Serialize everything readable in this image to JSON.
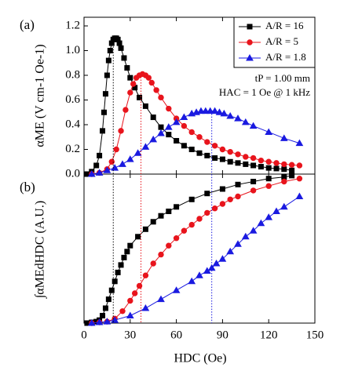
{
  "chart_data": [
    {
      "type": "line",
      "panel_label": "(a)",
      "y_label": "αME (V cm-1 Oe-1)",
      "annotations": [
        "tP = 1.00 mm",
        "HAC = 1 Oe @ 1 kHz"
      ],
      "xlim": [
        0,
        150
      ],
      "xticks": [
        0,
        30,
        60,
        90,
        120,
        150
      ],
      "ylim": [
        0,
        1.27
      ],
      "yticks": [
        {
          "value": 0,
          "label": "0.0"
        },
        0.2,
        0.4,
        0.6,
        0.8,
        {
          "value": 1,
          "label": "1.0"
        },
        1.2
      ],
      "legend": "upper right",
      "reference_lines": [
        {
          "x": 19,
          "color": "#000000"
        },
        {
          "x": 37,
          "color": "#e8141c"
        },
        {
          "x": 83,
          "color": "#1a1ae0"
        }
      ],
      "series": [
        {
          "name": "A/R = 16",
          "color": "#000000",
          "marker": "square",
          "x": [
            2,
            5,
            8,
            10,
            12,
            13,
            14,
            15,
            16,
            17,
            18,
            19,
            20,
            21,
            22,
            23,
            24,
            26,
            28,
            30,
            33,
            36,
            40,
            45,
            50,
            55,
            60,
            65,
            70,
            75,
            80,
            85,
            90,
            95,
            100,
            105,
            110,
            115,
            120,
            125,
            130,
            135
          ],
          "values": [
            0,
            0.02,
            0.07,
            0.15,
            0.35,
            0.5,
            0.65,
            0.8,
            0.92,
            1.0,
            1.06,
            1.09,
            1.1,
            1.1,
            1.09,
            1.06,
            1.02,
            0.94,
            0.86,
            0.78,
            0.7,
            0.62,
            0.55,
            0.46,
            0.38,
            0.32,
            0.27,
            0.23,
            0.2,
            0.17,
            0.15,
            0.13,
            0.12,
            0.1,
            0.09,
            0.08,
            0.07,
            0.06,
            0.05,
            0.045,
            0.04,
            0.03
          ]
        },
        {
          "name": "A/R = 5",
          "color": "#e8141c",
          "marker": "circle",
          "x": [
            5,
            10,
            15,
            18,
            21,
            24,
            27,
            30,
            32,
            34,
            36,
            38,
            40,
            42,
            44,
            47,
            50,
            55,
            60,
            65,
            70,
            75,
            80,
            85,
            90,
            95,
            100,
            105,
            110,
            115,
            120,
            125,
            130,
            135,
            140
          ],
          "values": [
            0,
            0.01,
            0.04,
            0.1,
            0.2,
            0.35,
            0.52,
            0.66,
            0.73,
            0.78,
            0.8,
            0.81,
            0.8,
            0.78,
            0.74,
            0.68,
            0.62,
            0.53,
            0.45,
            0.39,
            0.34,
            0.3,
            0.26,
            0.23,
            0.2,
            0.18,
            0.16,
            0.14,
            0.13,
            0.11,
            0.1,
            0.09,
            0.08,
            0.075,
            0.07
          ]
        },
        {
          "name": "A/R = 1.8",
          "color": "#1a1ae0",
          "marker": "triangle",
          "x": [
            5,
            10,
            15,
            20,
            25,
            30,
            35,
            40,
            45,
            50,
            55,
            60,
            65,
            70,
            73,
            76,
            79,
            82,
            85,
            88,
            91,
            95,
            100,
            105,
            110,
            120,
            130,
            140
          ],
          "values": [
            0,
            0.01,
            0.03,
            0.05,
            0.08,
            0.12,
            0.17,
            0.22,
            0.28,
            0.33,
            0.38,
            0.42,
            0.46,
            0.49,
            0.5,
            0.51,
            0.51,
            0.51,
            0.51,
            0.5,
            0.49,
            0.47,
            0.45,
            0.42,
            0.39,
            0.34,
            0.29,
            0.25
          ]
        }
      ]
    },
    {
      "type": "line",
      "panel_label": "(b)",
      "y_label": "∫αMEdHDC (A.U.)",
      "x_label": "HDC (Oe)",
      "xlim": [
        0,
        150
      ],
      "xticks": [
        0,
        30,
        60,
        90,
        120,
        150
      ],
      "ylim": [
        0,
        1
      ],
      "series": [
        {
          "color": "#000000",
          "marker": "square",
          "x": [
            2,
            5,
            8,
            10,
            12,
            14,
            16,
            18,
            20,
            22,
            24,
            26,
            28,
            30,
            35,
            40,
            45,
            50,
            55,
            60,
            70,
            80,
            90,
            100,
            110,
            120,
            130,
            135
          ],
          "values": [
            0,
            0.005,
            0.01,
            0.02,
            0.05,
            0.1,
            0.16,
            0.22,
            0.28,
            0.34,
            0.39,
            0.44,
            0.48,
            0.52,
            0.58,
            0.63,
            0.68,
            0.72,
            0.75,
            0.78,
            0.83,
            0.87,
            0.9,
            0.93,
            0.95,
            0.97,
            0.98,
            0.99
          ]
        },
        {
          "color": "#e8141c",
          "marker": "circle",
          "x": [
            5,
            10,
            15,
            20,
            25,
            30,
            33,
            36,
            40,
            45,
            50,
            55,
            60,
            65,
            70,
            75,
            80,
            85,
            90,
            95,
            100,
            110,
            120,
            130,
            140
          ],
          "values": [
            0,
            0.005,
            0.01,
            0.03,
            0.08,
            0.15,
            0.2,
            0.25,
            0.32,
            0.4,
            0.46,
            0.52,
            0.57,
            0.62,
            0.66,
            0.7,
            0.74,
            0.77,
            0.8,
            0.83,
            0.85,
            0.89,
            0.92,
            0.95,
            0.97
          ]
        },
        {
          "color": "#1a1ae0",
          "marker": "triangle",
          "x": [
            5,
            10,
            15,
            20,
            30,
            40,
            50,
            60,
            70,
            75,
            80,
            83,
            86,
            90,
            95,
            100,
            105,
            110,
            115,
            120,
            125,
            130,
            140
          ],
          "values": [
            0,
            0.005,
            0.01,
            0.02,
            0.05,
            0.1,
            0.16,
            0.22,
            0.28,
            0.32,
            0.35,
            0.37,
            0.4,
            0.43,
            0.48,
            0.53,
            0.58,
            0.62,
            0.67,
            0.71,
            0.75,
            0.78,
            0.85
          ]
        }
      ]
    }
  ]
}
